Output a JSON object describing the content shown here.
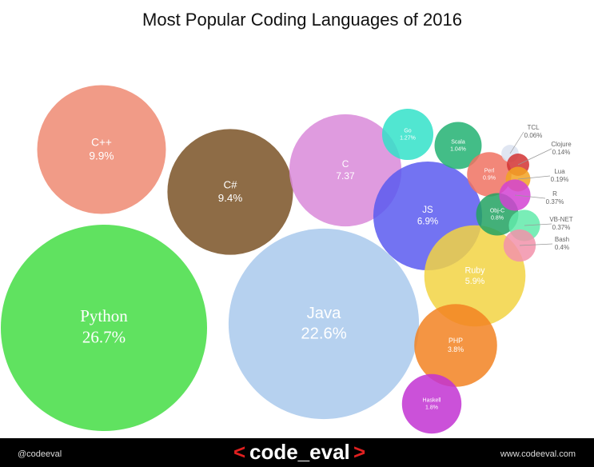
{
  "chart_data": {
    "type": "bubble",
    "title": "Most Popular Coding Languages of 2016",
    "categories": [
      "Python",
      "Java",
      "C++",
      "C#",
      "C",
      "JS",
      "Ruby",
      "PHP",
      "Haskell",
      "Go",
      "Scala",
      "Perl",
      "Obj-C",
      "TCL",
      "Clojure",
      "Lua",
      "R",
      "VB-NET",
      "Bash"
    ],
    "values": [
      26.7,
      22.6,
      9.9,
      9.4,
      7.37,
      6.9,
      5.9,
      3.8,
      1.8,
      1.27,
      1.04,
      0.9,
      0.8,
      0.06,
      0.14,
      0.19,
      0.37,
      0.37,
      0.4
    ],
    "value_labels": [
      "26.7%",
      "22.6%",
      "9.9%",
      "9.4%",
      "7.37",
      "6.9%",
      "5.9%",
      "3.8%",
      "1.8%",
      "1.27%",
      "1.04%",
      "0.9%",
      "0.8%",
      "0.06%",
      "0.14%",
      "0.19%",
      "0.37%",
      "0.37%",
      "0.4%"
    ],
    "colors": [
      "#44dd44",
      "#a9c9ec",
      "#ee8a72",
      "#7a5226",
      "#d98ad9",
      "#5a5af0",
      "#f2d443",
      "#f28222",
      "#c232d2",
      "#33e2c9",
      "#22b272",
      "#f07262",
      "#22a262",
      "#dae2f0",
      "#d23232",
      "#f2a222",
      "#d242d2",
      "#62eaaa",
      "#f292aa"
    ]
  },
  "footer": {
    "handle": "@codeeval",
    "logo_open": "<",
    "logo": "code_eval",
    "logo_close": ">",
    "url": "www.codeeval.com"
  }
}
